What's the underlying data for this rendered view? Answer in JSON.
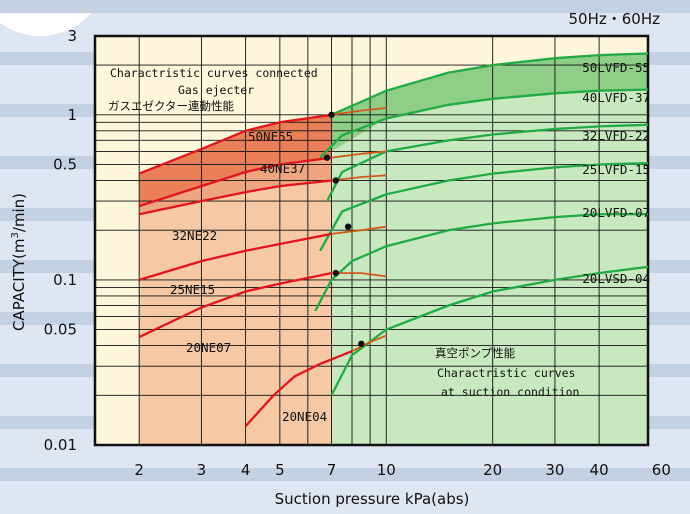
{
  "chart_data": {
    "type": "line",
    "title": "",
    "corner_label": "50Hz・60Hz",
    "xlabel": "Suction pressure kPa(abs)",
    "ylabel_pre": "CAPACITY(m",
    "ylabel_sup": "3",
    "ylabel_post": "/min)",
    "x_scale": "log",
    "y_scale": "log",
    "xlim": [
      1.5,
      55
    ],
    "ylim": [
      0.01,
      3
    ],
    "x_ticks": [
      2,
      3,
      4,
      5,
      7,
      10,
      20,
      30,
      40,
      60
    ],
    "x_tick_labels": [
      "2",
      "3",
      "4",
      "5",
      "7",
      "10",
      "20",
      "30",
      "40",
      "60"
    ],
    "y_ticks": [
      0.01,
      0.05,
      0.1,
      0.5,
      1,
      3
    ],
    "y_tick_labels": [
      "0.01",
      "0.05",
      "0.1",
      "0.5",
      "1",
      "3"
    ],
    "grid": true,
    "colors": {
      "band_bg": "#c4d1e3",
      "plot_bg": "#fdf6da",
      "grid": "#111111",
      "ne_line": "#e0161e",
      "ext_line": "#cf5a1a",
      "lv_line": "#22aa44",
      "fill_dark": "#eb7f57",
      "fill_mid": "#f0a581",
      "fill_light": "#f6c8a4",
      "green_light": "#c8e9bf",
      "green_dark": "#8ece86",
      "point": "#111111"
    },
    "ejector_series": [
      {
        "name": "50NE55",
        "points": [
          [
            2,
            0.44
          ],
          [
            3,
            0.62
          ],
          [
            4,
            0.8
          ],
          [
            5,
            0.9
          ],
          [
            7,
            1.0
          ]
        ],
        "ext": [
          [
            7,
            1.0
          ],
          [
            8.5,
            1.06
          ],
          [
            10,
            1.1
          ]
        ]
      },
      {
        "name": "40NE37",
        "points": [
          [
            2,
            0.28
          ],
          [
            3,
            0.37
          ],
          [
            4,
            0.45
          ],
          [
            5,
            0.5
          ],
          [
            7,
            0.55
          ]
        ],
        "ext": [
          [
            7,
            0.55
          ],
          [
            8.5,
            0.58
          ],
          [
            10,
            0.6
          ]
        ]
      },
      {
        "name": "32NE22",
        "points": [
          [
            2,
            0.25
          ],
          [
            3,
            0.3
          ],
          [
            4,
            0.34
          ],
          [
            5,
            0.37
          ],
          [
            7,
            0.4
          ]
        ],
        "ext": [
          [
            7,
            0.4
          ],
          [
            8.5,
            0.42
          ],
          [
            10,
            0.43
          ]
        ]
      },
      {
        "name": "25NE15",
        "points": [
          [
            2,
            0.1
          ],
          [
            3,
            0.13
          ],
          [
            4,
            0.15
          ],
          [
            5,
            0.165
          ],
          [
            7,
            0.19
          ]
        ],
        "ext": [
          [
            7,
            0.19
          ],
          [
            8.5,
            0.2
          ],
          [
            10,
            0.21
          ]
        ]
      },
      {
        "name": "20NE07",
        "points": [
          [
            2,
            0.045
          ],
          [
            3,
            0.068
          ],
          [
            4,
            0.085
          ],
          [
            5,
            0.095
          ],
          [
            7,
            0.11
          ]
        ],
        "ext": [
          [
            7,
            0.11
          ],
          [
            8.5,
            0.11
          ],
          [
            10,
            0.105
          ]
        ]
      },
      {
        "name": "20NE04",
        "points": [
          [
            4,
            0.013
          ],
          [
            4.8,
            0.02
          ],
          [
            5.5,
            0.026
          ],
          [
            6.5,
            0.031
          ],
          [
            8,
            0.037
          ]
        ],
        "ext": [
          [
            8,
            0.037
          ],
          [
            9,
            0.042
          ],
          [
            10,
            0.046
          ]
        ]
      }
    ],
    "ejector_fill": [
      [
        2,
        0.44
      ],
      [
        3,
        0.62
      ],
      [
        4,
        0.8
      ],
      [
        5,
        0.9
      ],
      [
        7,
        1.0
      ],
      [
        7,
        0.01
      ],
      [
        4,
        0.01
      ],
      [
        2,
        0.01
      ]
    ],
    "ejector_fill_dark": [
      [
        2,
        0.44
      ],
      [
        3,
        0.62
      ],
      [
        4,
        0.8
      ],
      [
        5,
        0.9
      ],
      [
        7,
        1.0
      ],
      [
        7,
        0.55
      ],
      [
        5,
        0.5
      ],
      [
        4,
        0.45
      ],
      [
        3,
        0.37
      ],
      [
        2,
        0.28
      ]
    ],
    "ejector_fill_mid": [
      [
        2,
        0.28
      ],
      [
        3,
        0.37
      ],
      [
        4,
        0.45
      ],
      [
        5,
        0.5
      ],
      [
        7,
        0.55
      ],
      [
        7,
        0.4
      ],
      [
        5,
        0.37
      ],
      [
        4,
        0.34
      ],
      [
        3,
        0.3
      ],
      [
        2,
        0.25
      ]
    ],
    "green_fill": [
      [
        6.5,
        0.05
      ],
      [
        7,
        0.5
      ],
      [
        7.5,
        1.0
      ],
      [
        10,
        1.4
      ],
      [
        15,
        1.8
      ],
      [
        20,
        2.0
      ],
      [
        30,
        2.2
      ],
      [
        40,
        2.3
      ],
      [
        55,
        2.35
      ],
      [
        55,
        0.01
      ],
      [
        7,
        0.01
      ]
    ],
    "green_fill_dark": [
      [
        7,
        1.0
      ],
      [
        10,
        1.4
      ],
      [
        15,
        1.8
      ],
      [
        20,
        2.0
      ],
      [
        30,
        2.2
      ],
      [
        40,
        2.3
      ],
      [
        55,
        2.35
      ],
      [
        55,
        1.42
      ],
      [
        40,
        1.4
      ],
      [
        30,
        1.35
      ],
      [
        20,
        1.25
      ],
      [
        15,
        1.15
      ],
      [
        10,
        0.95
      ],
      [
        7,
        0.6
      ]
    ],
    "pump_series": [
      {
        "name": "50LVFD-55",
        "points": [
          [
            7,
            1.0
          ],
          [
            10,
            1.4
          ],
          [
            15,
            1.8
          ],
          [
            20,
            2.0
          ],
          [
            30,
            2.2
          ],
          [
            40,
            2.3
          ],
          [
            55,
            2.35
          ]
        ]
      },
      {
        "name": "40LVFD-37",
        "points": [
          [
            6.5,
            0.55
          ],
          [
            7.5,
            0.75
          ],
          [
            10,
            0.95
          ],
          [
            15,
            1.15
          ],
          [
            20,
            1.25
          ],
          [
            30,
            1.35
          ],
          [
            40,
            1.4
          ],
          [
            55,
            1.42
          ]
        ]
      },
      {
        "name": "32LVFD-22",
        "points": [
          [
            6.8,
            0.3
          ],
          [
            7.5,
            0.45
          ],
          [
            10,
            0.6
          ],
          [
            15,
            0.7
          ],
          [
            20,
            0.76
          ],
          [
            30,
            0.82
          ],
          [
            40,
            0.85
          ],
          [
            55,
            0.87
          ]
        ]
      },
      {
        "name": "25LVFD-15",
        "points": [
          [
            6.5,
            0.15
          ],
          [
            7.5,
            0.26
          ],
          [
            10,
            0.33
          ],
          [
            15,
            0.4
          ],
          [
            20,
            0.44
          ],
          [
            30,
            0.48
          ],
          [
            40,
            0.5
          ],
          [
            55,
            0.51
          ]
        ]
      },
      {
        "name": "20LVFD-07",
        "points": [
          [
            6.3,
            0.065
          ],
          [
            7,
            0.1
          ],
          [
            8,
            0.13
          ],
          [
            10,
            0.16
          ],
          [
            15,
            0.2
          ],
          [
            20,
            0.22
          ],
          [
            30,
            0.24
          ],
          [
            40,
            0.25
          ],
          [
            55,
            0.25
          ]
        ]
      },
      {
        "name": "20LVSD-04",
        "points": [
          [
            7,
            0.02
          ],
          [
            8,
            0.035
          ],
          [
            10,
            0.05
          ],
          [
            15,
            0.07
          ],
          [
            20,
            0.085
          ],
          [
            30,
            0.1
          ],
          [
            40,
            0.11
          ],
          [
            55,
            0.12
          ]
        ]
      }
    ],
    "intersections": [
      [
        7,
        1.0
      ],
      [
        6.8,
        0.55
      ],
      [
        7.2,
        0.4
      ],
      [
        7.8,
        0.21
      ],
      [
        7.2,
        0.11
      ],
      [
        8.5,
        0.041
      ]
    ],
    "annotations": {
      "ejector_en_line1": "Charactristic curves connected",
      "ejector_en_line2": "Gas ejecter",
      "ejector_jp": "ガスエゼクター連動性能",
      "pump_jp": "真空ポンプ性能",
      "pump_en_line1": "Charactristic curves",
      "pump_en_line2": "at suction condition"
    }
  }
}
